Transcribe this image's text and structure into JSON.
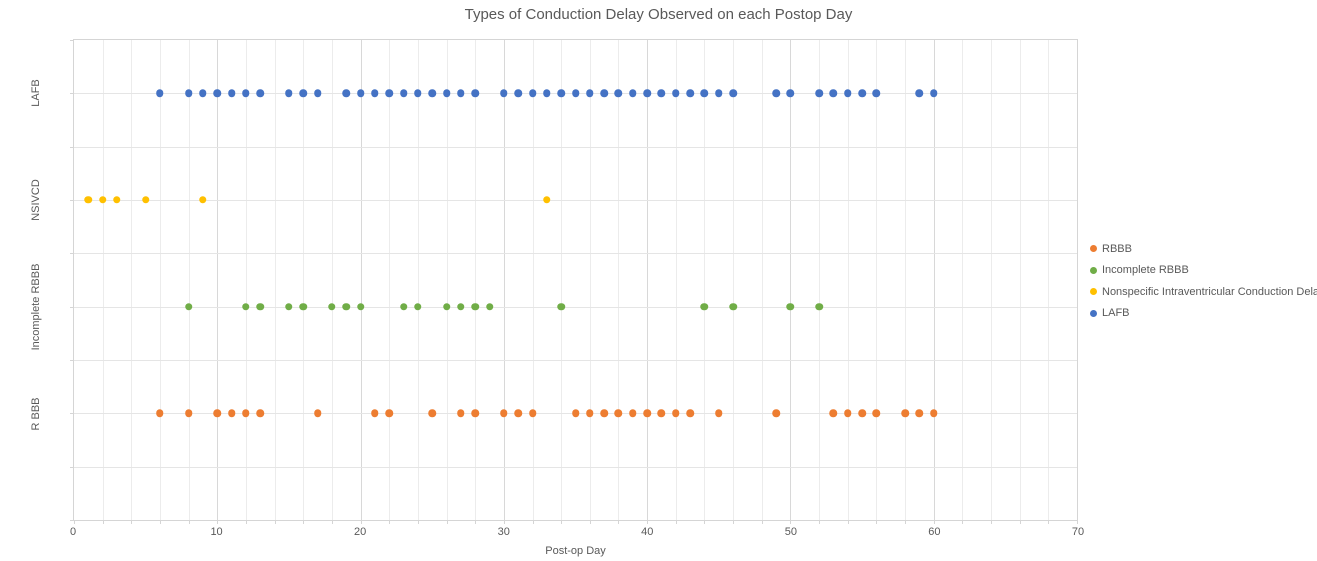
{
  "title": "Types of Conduction Delay Observed on each Postop Day",
  "chart_data": {
    "type": "scatter",
    "title": "Types of Conduction Delay Observed on each Postop Day",
    "xlabel": "Post-op Day",
    "xlim": [
      0,
      70
    ],
    "x_major_ticks": [
      0,
      10,
      20,
      30,
      40,
      50,
      60,
      70
    ],
    "x_grid_step": 2,
    "grid": true,
    "legend_position": "right",
    "y_grid_lines_total": 9,
    "y_rows": [
      {
        "label": "LAFB",
        "grid_line": 1
      },
      {
        "label": "NSIVCD",
        "grid_line": 3
      },
      {
        "label": "Incomplete RBBB",
        "grid_line": 5
      },
      {
        "label": "R BBB",
        "grid_line": 7
      }
    ],
    "series": [
      {
        "name": "RBBB",
        "color": "#ED7D31",
        "row_label": "R BBB",
        "days": [
          6,
          8,
          10,
          11,
          12,
          13,
          17,
          21,
          22,
          25,
          27,
          28,
          30,
          31,
          32,
          35,
          36,
          37,
          38,
          39,
          40,
          41,
          42,
          43,
          45,
          49,
          53,
          54,
          55,
          56,
          58,
          59,
          60
        ]
      },
      {
        "name": "Incomplete RBBB",
        "color": "#70AD47",
        "row_label": "Incomplete RBBB",
        "days": [
          8,
          12,
          13,
          15,
          16,
          18,
          19,
          20,
          23,
          24,
          26,
          27,
          28,
          29,
          34,
          44,
          46,
          50,
          52
        ]
      },
      {
        "name": "Nonspecific Intraventricular Conduction Delay",
        "color": "#FFC000",
        "row_label": "NSIVCD",
        "days": [
          1,
          2,
          3,
          5,
          9,
          33
        ]
      },
      {
        "name": "LAFB",
        "color": "#4472C4",
        "row_label": "LAFB",
        "days": [
          6,
          8,
          9,
          10,
          11,
          12,
          13,
          15,
          16,
          17,
          19,
          20,
          21,
          22,
          23,
          24,
          25,
          26,
          27,
          28,
          30,
          31,
          32,
          33,
          34,
          35,
          36,
          37,
          38,
          39,
          40,
          41,
          42,
          43,
          44,
          45,
          46,
          49,
          50,
          52,
          53,
          54,
          55,
          56,
          59,
          60
        ]
      }
    ],
    "colors": {
      "text": "#595959",
      "grid_minor": "#ECECEC",
      "grid_major": "#D8D8D8",
      "grid_horizontal": "#E5E5E5",
      "plot_border": "#D5D5D5"
    }
  }
}
